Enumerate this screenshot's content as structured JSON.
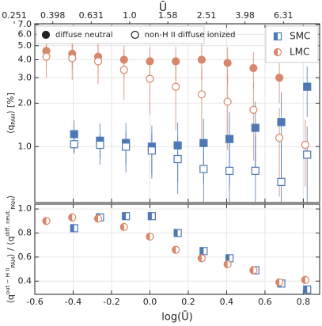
{
  "chart_data": [
    {
      "type": "scatter",
      "sharex": true,
      "ylabel": {
        "parts": [
          {
            "text": "⟨q"
          },
          {
            "text": "PAH",
            "shift": "sub"
          },
          {
            "text": "⟩ [%]"
          }
        ]
      },
      "x2label": "Ū",
      "x2log": true,
      "x2lim": [
        0.321,
        9.73
      ],
      "x2ticks": [
        0.251,
        0.398,
        0.631,
        {
          "value": 1,
          "label": "1.0"
        },
        1.58,
        2.51,
        3.98,
        6.31
      ],
      "ylog": true,
      "ylim": [
        0.41,
        7.1
      ],
      "yticks": [
        {
          "value": 1,
          "label": "1.0"
        },
        {
          "value": 2,
          "label": "2.0"
        },
        {
          "value": 3,
          "label": "3.0"
        },
        {
          "value": 4,
          "label": "4.0"
        },
        {
          "value": 5,
          "label": "5.0"
        },
        {
          "value": 6,
          "label": "6.0"
        },
        {
          "value": 7,
          "label": "7.0"
        }
      ],
      "grid": true,
      "legends": [
        {
          "corner": "upper left",
          "entries": [
            {
              "label": "diffuse neutral",
              "fill": "filled"
            },
            {
              "label": "non-H II diffuse ionized",
              "fill": "open"
            }
          ]
        },
        {
          "corner": "upper right",
          "entries": [
            {
              "label": "SMC",
              "marker": "square",
              "color": "#4e78b5"
            },
            {
              "label": "LMC",
              "marker": "circle",
              "color": "#d8876a"
            }
          ]
        }
      ],
      "series": [
        {
          "marker": "circle",
          "fill": "filled",
          "color": "#d8876a",
          "x": [
            -0.54,
            -0.405,
            -0.27,
            -0.135,
            0.0,
            0.135,
            0.27,
            0.405,
            0.54,
            0.675,
            0.81
          ],
          "values": [
            4.6,
            4.4,
            4.2,
            4.0,
            3.9,
            3.9,
            4.0,
            3.8,
            3.5,
            3.0,
            null
          ],
          "errors": [
            1.0,
            1.0,
            1.0,
            1.0,
            1.0,
            1.0,
            1.1,
            1.1,
            1.0,
            1.0,
            null
          ]
        },
        {
          "marker": "circle",
          "fill": "open",
          "color": "#d8876a",
          "x": [
            -0.54,
            -0.405,
            -0.27,
            -0.135,
            0.0,
            0.135,
            0.27,
            0.405,
            0.54,
            0.675,
            0.81
          ],
          "values": [
            4.2,
            4.1,
            3.9,
            3.4,
            2.95,
            2.6,
            2.3,
            2.05,
            1.8,
            1.15,
            1.03
          ],
          "errors": [
            1.2,
            1.2,
            1.2,
            1.3,
            1.3,
            1.3,
            1.2,
            1.1,
            1.0,
            0.7,
            0.5
          ]
        },
        {
          "marker": "square",
          "fill": "filled",
          "color": "#4e78b5",
          "x": [
            -0.395,
            -0.26,
            -0.125,
            0.01,
            0.145,
            0.28,
            0.415,
            0.55,
            0.685,
            0.82
          ],
          "values": [
            1.22,
            1.1,
            1.06,
            1.0,
            1.02,
            1.06,
            1.13,
            1.35,
            1.48,
            2.6
          ],
          "errors": [
            0.3,
            0.35,
            0.4,
            0.4,
            0.45,
            0.5,
            0.6,
            0.7,
            0.9,
            1.0
          ]
        },
        {
          "marker": "square",
          "fill": "open",
          "color": "#4e78b5",
          "x": [
            -0.395,
            -0.26,
            -0.125,
            0.01,
            0.145,
            0.28,
            0.415,
            0.55,
            0.685,
            0.82
          ],
          "values": [
            1.04,
            1.03,
            1.0,
            0.94,
            0.82,
            0.7,
            0.68,
            0.68,
            0.57,
            0.88
          ],
          "errors": [
            0.15,
            0.2,
            0.25,
            0.3,
            0.35,
            0.4,
            0.45,
            0.5,
            0.5,
            0.5
          ]
        }
      ]
    },
    {
      "type": "scatter",
      "xlabel": "log(Ū)",
      "ylabel": {
        "parts": [
          {
            "text": "⟨q"
          },
          {
            "text": "out − H II",
            "shift": "super"
          },
          {
            "text": "PAH",
            "shift": "sub"
          },
          {
            "text": "⟩ / ⟨q"
          },
          {
            "text": "diff. neut.",
            "shift": "super"
          },
          {
            "text": "PAH",
            "shift": "sub"
          },
          {
            "text": "⟩"
          }
        ]
      },
      "xlim": [
        -0.6,
        0.885
      ],
      "xticks": [
        -0.6,
        -0.4,
        -0.2,
        {
          "value": 0,
          "label": "0.0"
        },
        0.2,
        0.4,
        0.6,
        0.8
      ],
      "ylim": [
        0.29,
        1.04
      ],
      "yticks": [
        0.4,
        0.6,
        0.8,
        {
          "value": 1,
          "label": "1.0"
        }
      ],
      "grid": true,
      "series": [
        {
          "marker": "square",
          "fill": "half",
          "color": "#4e78b5",
          "x": [
            -0.395,
            -0.26,
            -0.125,
            0.01,
            0.145,
            0.28,
            0.415,
            0.55,
            0.685,
            0.82
          ],
          "values": [
            0.84,
            0.93,
            0.94,
            0.94,
            0.8,
            0.65,
            0.59,
            0.49,
            0.38,
            0.33
          ]
        },
        {
          "marker": "circle",
          "fill": "half",
          "color": "#d8876a",
          "x": [
            -0.54,
            -0.405,
            -0.27,
            -0.135,
            0.0,
            0.135,
            0.27,
            0.405,
            0.54,
            0.675,
            0.81
          ],
          "values": [
            0.9,
            0.93,
            0.92,
            0.85,
            0.77,
            0.66,
            0.59,
            0.54,
            0.49,
            0.39,
            0.41
          ]
        }
      ]
    }
  ]
}
